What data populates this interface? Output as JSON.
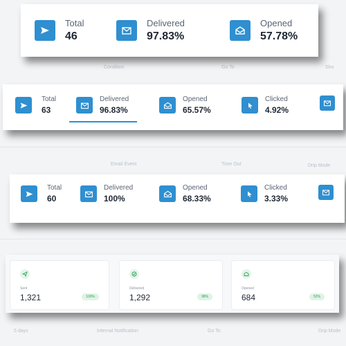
{
  "background": {
    "row1": [
      "Condition",
      "Go To",
      "Sho"
    ],
    "row2": [
      "Email Event",
      "Time Out",
      "Drip Mode"
    ],
    "row3": [
      "5 days",
      "Internal Notification",
      "Go To",
      "Drip Mode"
    ]
  },
  "panel1": {
    "stats": [
      {
        "icon": "paper-plane-icon",
        "label": "Total",
        "value": "46"
      },
      {
        "icon": "mail-check-icon",
        "label": "Delivered",
        "value": "97.83%"
      },
      {
        "icon": "mail-open-icon",
        "label": "Opened",
        "value": "57.78%"
      }
    ]
  },
  "panel2": {
    "stats": [
      {
        "icon": "paper-plane-icon",
        "label": "Total",
        "value": "63"
      },
      {
        "icon": "mail-check-icon",
        "label": "Delivered",
        "value": "96.83%"
      },
      {
        "icon": "mail-open-icon",
        "label": "Opened",
        "value": "65.57%"
      },
      {
        "icon": "cursor-click-icon",
        "label": "Clicked",
        "value": "4.92%"
      },
      {
        "icon": "mail-reply-icon",
        "label": "",
        "value": ""
      }
    ]
  },
  "panel3": {
    "stats": [
      {
        "icon": "paper-plane-icon",
        "label": "Total",
        "value": "60"
      },
      {
        "icon": "mail-check-icon",
        "label": "Delivered",
        "value": "100%"
      },
      {
        "icon": "mail-open-icon",
        "label": "Opened",
        "value": "68.33%"
      },
      {
        "icon": "cursor-click-icon",
        "label": "Clicked",
        "value": "3.33%"
      },
      {
        "icon": "mail-reply-icon",
        "label": "",
        "value": ""
      }
    ]
  },
  "panel4": {
    "stats": [
      {
        "icon": "send-icon",
        "label": "Sent",
        "value": "1,321",
        "percent": "100%"
      },
      {
        "icon": "check-circle-icon",
        "label": "Delivered",
        "value": "1,292",
        "percent": "98%"
      },
      {
        "icon": "mail-open-icon",
        "label": "Opened",
        "value": "684",
        "percent": "52%"
      }
    ]
  },
  "colors": {
    "accent": "#2f8fd0",
    "badge_green": "#2f9e57",
    "badge_bg": "#dff3e5"
  }
}
